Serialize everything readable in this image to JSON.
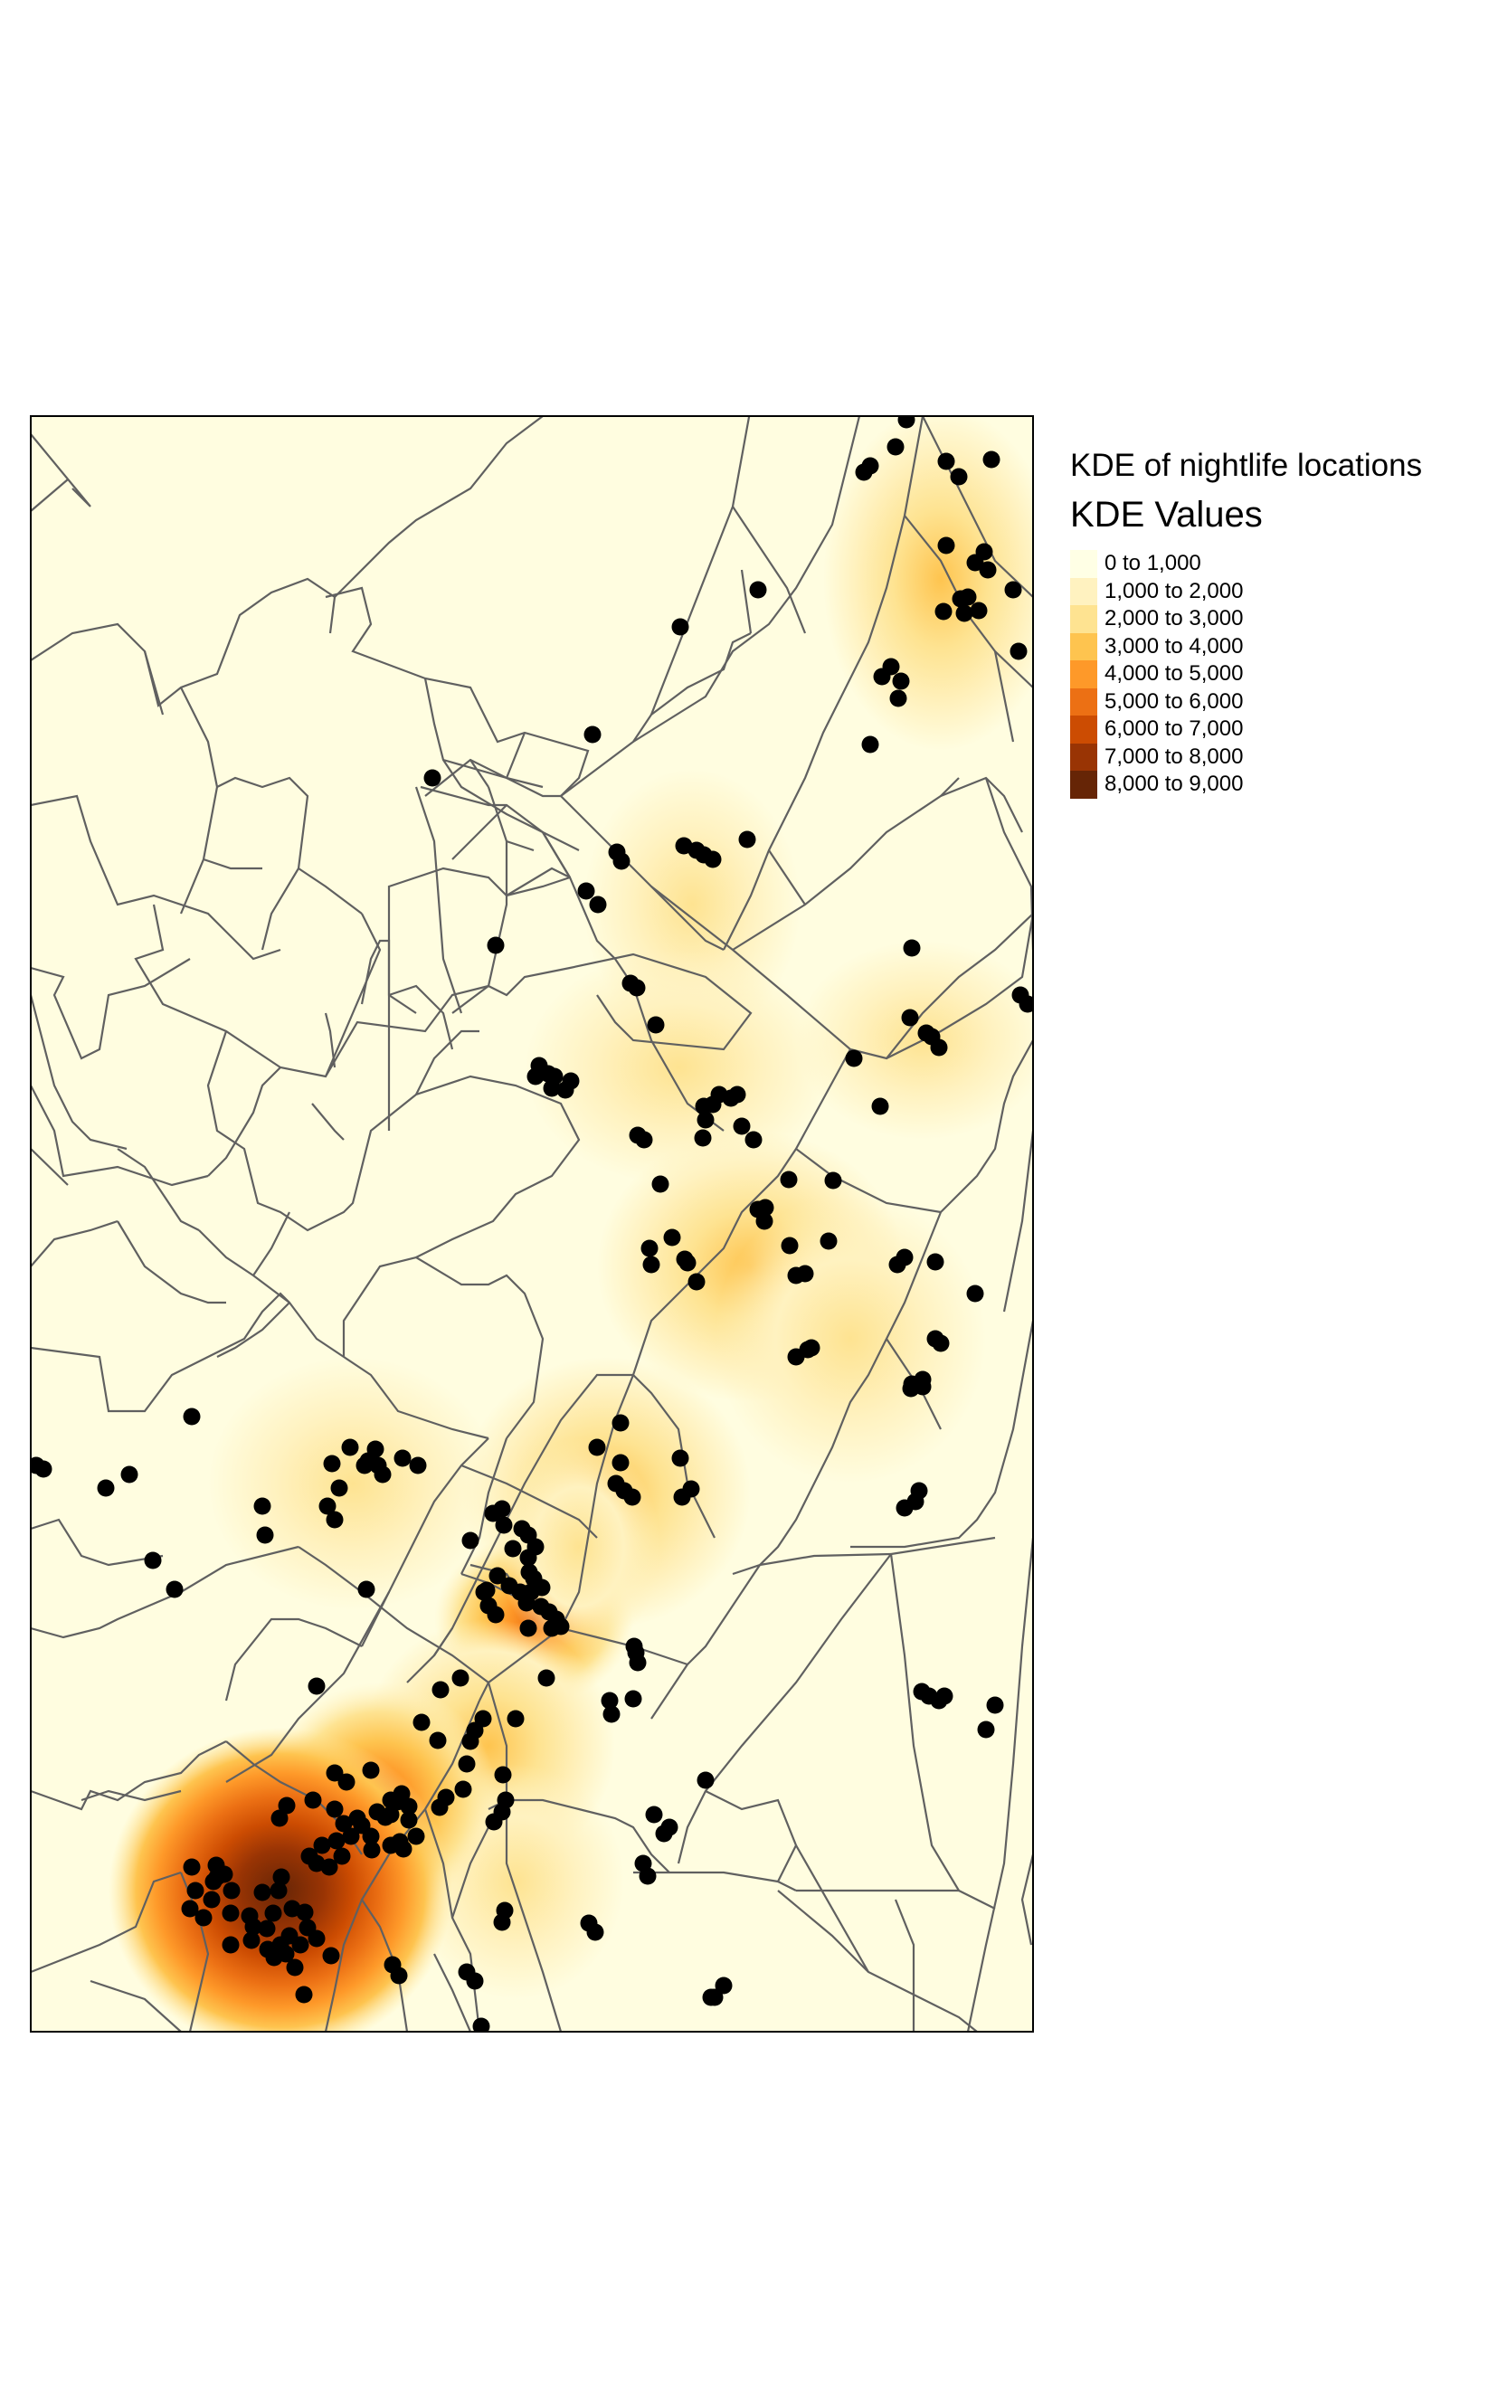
{
  "legend": {
    "main_title": "KDE of nightlife locations",
    "title": "KDE Values",
    "classes": [
      {
        "label": "0 to 1,000",
        "color": "#ffffe5"
      },
      {
        "label": "1,000 to 2,000",
        "color": "#fff2c0"
      },
      {
        "label": "2,000 to 3,000",
        "color": "#fee391"
      },
      {
        "label": "3,000 to 4,000",
        "color": "#fec44f"
      },
      {
        "label": "4,000 to 5,000",
        "color": "#fe9929"
      },
      {
        "label": "5,000 to 6,000",
        "color": "#ec7014"
      },
      {
        "label": "6,000 to 7,000",
        "color": "#cc4c02"
      },
      {
        "label": "7,000 to 8,000",
        "color": "#993404"
      },
      {
        "label": "8,000 to 9,000",
        "color": "#662506"
      }
    ]
  },
  "map": {
    "background_color": "#fffde0",
    "boundary_color": "#606060",
    "point_color": "#000000",
    "point_symbol": "filled-circle",
    "point_count_approx": 230
  }
}
